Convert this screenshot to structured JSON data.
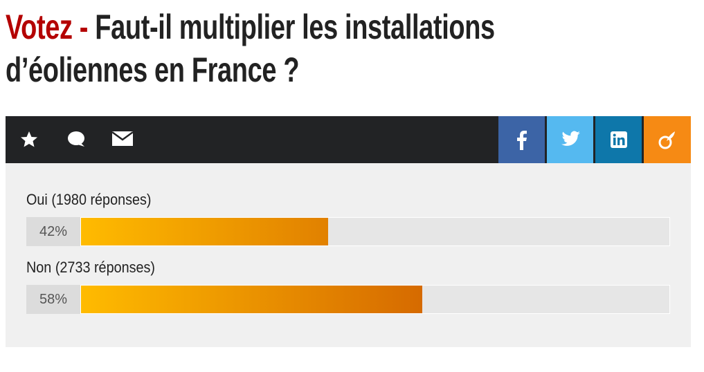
{
  "title_prefix": "Votez -",
  "title": "Faut-il multiplier les installations d’éoliennes en France ?",
  "poll": {
    "options": [
      {
        "label": "Oui (1980 réponses)",
        "value": 42,
        "value_label": "42%"
      },
      {
        "label": "Non (2733 réponses)",
        "value": 58,
        "value_label": "58%"
      }
    ]
  }
}
